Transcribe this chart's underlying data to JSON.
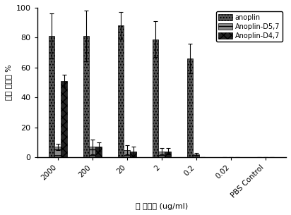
{
  "categories": [
    "2000",
    "200",
    "20",
    "2",
    "0.2",
    "0.02",
    "PBS Control"
  ],
  "series": [
    {
      "name": "anoplin",
      "values": [
        81,
        81,
        88,
        79,
        66,
        0,
        0
      ],
      "errors": [
        15,
        17,
        9,
        12,
        10,
        0,
        0
      ],
      "hatch": "....",
      "facecolor": "#555555",
      "edgecolor": "#000000"
    },
    {
      "name": "Anoplin-D5,7",
      "values": [
        7,
        7,
        5,
        4,
        2,
        0,
        0
      ],
      "errors": [
        2,
        5,
        3,
        2,
        1,
        0,
        0
      ],
      "hatch": "--",
      "facecolor": "#888888",
      "edgecolor": "#000000"
    },
    {
      "name": "Anoplin-D4,7",
      "values": [
        51,
        7,
        4,
        4,
        0,
        0,
        0
      ],
      "errors": [
        4,
        3,
        3,
        2,
        0,
        0,
        0
      ],
      "hatch": "xxx",
      "facecolor": "#222222",
      "edgecolor": "#000000"
    }
  ],
  "ylabel": "细菌 存活率 %",
  "xlabel": "胃 酶浓度 (ug/ml)",
  "ylim": [
    0,
    100
  ],
  "yticks": [
    0,
    20,
    40,
    60,
    80,
    100
  ],
  "bar_width": 0.18,
  "background_color": "#ffffff"
}
